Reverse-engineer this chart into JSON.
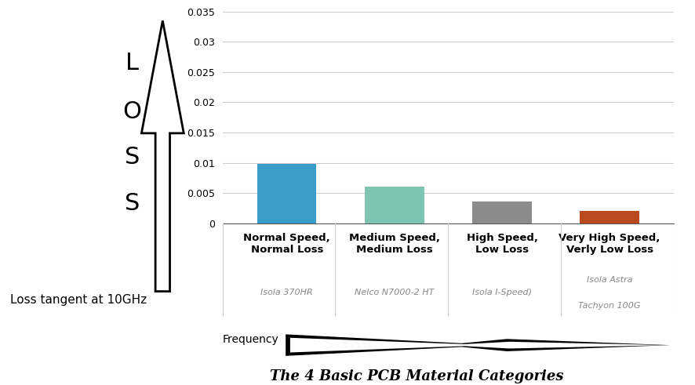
{
  "categories": [
    "Normal Speed,\nNormal Loss",
    "Medium Speed,\nMedium Loss",
    "High Speed,\nLow Loss",
    "Very High Speed,\nVerly Low Loss"
  ],
  "values": [
    0.0098,
    0.006,
    0.0036,
    0.002
  ],
  "bar_colors": [
    "#3a9dc8",
    "#7fc4b0",
    "#8c8c8c",
    "#b84a1e"
  ],
  "subtitles": [
    "Isola 370HR",
    "Nelco N7000-2 HT",
    "Isola I-Speed)",
    "Isola Astra\n\nTachyon 100G"
  ],
  "ylim": [
    0,
    0.035
  ],
  "yticks": [
    0,
    0.005,
    0.01,
    0.015,
    0.02,
    0.025,
    0.03,
    0.035
  ],
  "loss_label": "Loss tangent at 10GHz",
  "loss_arrow_letters": [
    "L",
    "O",
    "S",
    "S"
  ],
  "frequency_label": "Frequency",
  "title": "The 4 Basic PCB Material Categories",
  "background_color": "#ffffff",
  "grid_color": "#cccccc"
}
